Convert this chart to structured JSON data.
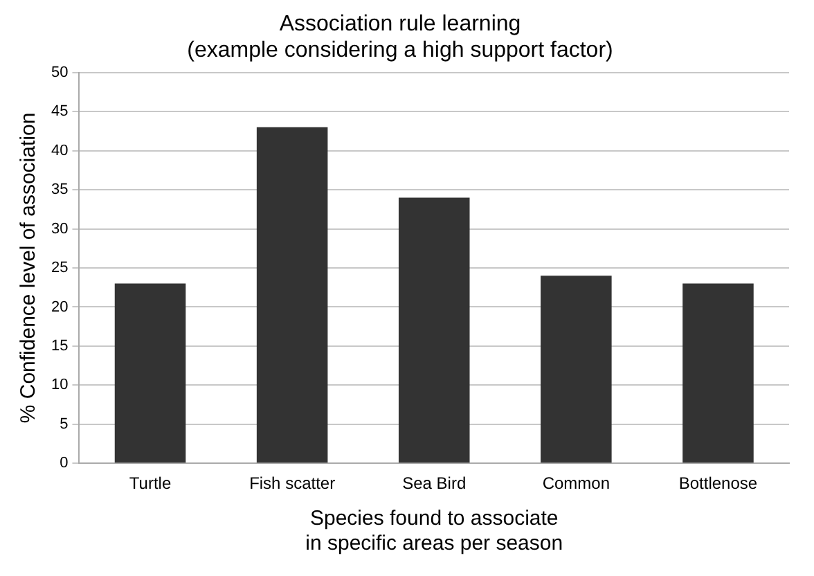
{
  "chart_data": {
    "type": "bar",
    "title": "Association rule learning\n(example considering a high support factor)",
    "xlabel": "Species found to associate\nin specific areas per season",
    "ylabel": "% Confidence level of association",
    "categories": [
      "Turtle",
      "Fish scatter",
      "Sea Bird",
      "Common",
      "Bottlenose"
    ],
    "values": [
      23,
      43,
      34,
      24,
      23
    ],
    "color": "#333333",
    "ylim": [
      0,
      50
    ],
    "yticks": [
      0,
      5,
      10,
      15,
      20,
      25,
      30,
      35,
      40,
      45,
      50
    ],
    "grid": "y",
    "legend": false
  }
}
